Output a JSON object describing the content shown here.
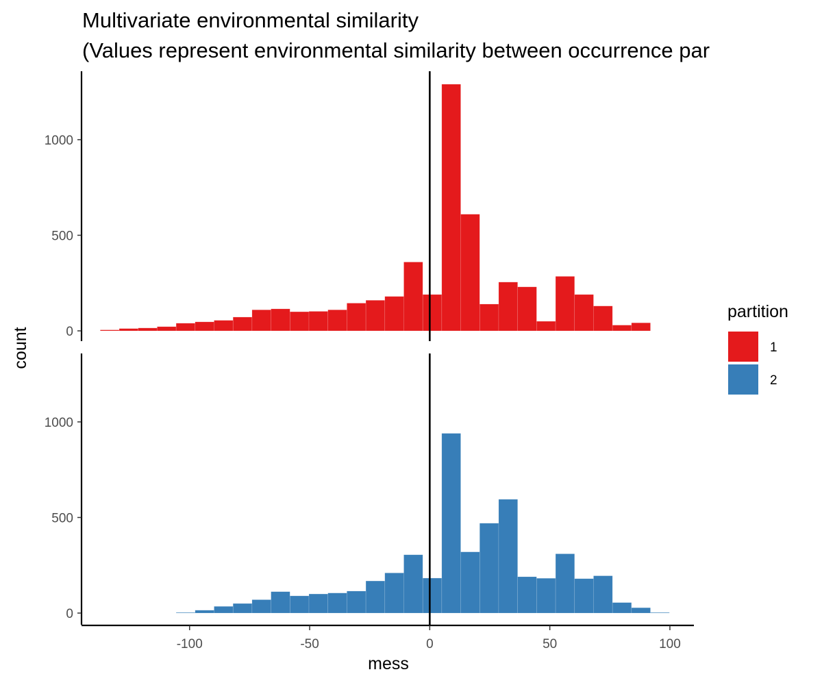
{
  "chart_data": {
    "type": "bar",
    "subtype": "faceted-histogram",
    "title": "Multivariate environmental similarity",
    "subtitle": "(Values represent environmental similarity between occurrence par",
    "xlabel": "mess",
    "ylabel": "count",
    "xlim": [
      -145,
      110
    ],
    "ylim": [
      0,
      1350
    ],
    "x_ticks": [
      -100,
      -50,
      0,
      50,
      100
    ],
    "y_ticks": [
      0,
      500,
      1000
    ],
    "bin_width": 7.9,
    "reference_line_x": 0,
    "grid": false,
    "legend": {
      "title": "partition",
      "position": "right",
      "entries": [
        {
          "label": "1",
          "color": "#E41A1C"
        },
        {
          "label": "2",
          "color": "#377EB8"
        }
      ]
    },
    "series": [
      {
        "name": "1",
        "color": "#E41A1C",
        "bins": [
          {
            "x0": -137.2,
            "x1": -129.3,
            "count": 5
          },
          {
            "x0": -129.3,
            "x1": -121.4,
            "count": 12
          },
          {
            "x0": -121.4,
            "x1": -113.5,
            "count": 15
          },
          {
            "x0": -113.5,
            "x1": -105.6,
            "count": 22
          },
          {
            "x0": -105.6,
            "x1": -97.7,
            "count": 40
          },
          {
            "x0": -97.7,
            "x1": -89.8,
            "count": 47
          },
          {
            "x0": -89.8,
            "x1": -81.9,
            "count": 55
          },
          {
            "x0": -81.9,
            "x1": -74.0,
            "count": 72
          },
          {
            "x0": -74.0,
            "x1": -66.1,
            "count": 110
          },
          {
            "x0": -66.1,
            "x1": -58.2,
            "count": 115
          },
          {
            "x0": -58.2,
            "x1": -50.3,
            "count": 100
          },
          {
            "x0": -50.3,
            "x1": -42.4,
            "count": 102
          },
          {
            "x0": -42.4,
            "x1": -34.5,
            "count": 110
          },
          {
            "x0": -34.5,
            "x1": -26.6,
            "count": 145
          },
          {
            "x0": -26.6,
            "x1": -18.7,
            "count": 160
          },
          {
            "x0": -18.7,
            "x1": -10.8,
            "count": 180
          },
          {
            "x0": -10.8,
            "x1": -2.9,
            "count": 360
          },
          {
            "x0": -2.9,
            "x1": 5.0,
            "count": 190
          },
          {
            "x0": 5.0,
            "x1": 12.9,
            "count": 1290
          },
          {
            "x0": 12.9,
            "x1": 20.8,
            "count": 610
          },
          {
            "x0": 20.8,
            "x1": 28.7,
            "count": 140
          },
          {
            "x0": 28.7,
            "x1": 36.6,
            "count": 255
          },
          {
            "x0": 36.6,
            "x1": 44.5,
            "count": 230
          },
          {
            "x0": 44.5,
            "x1": 52.4,
            "count": 50
          },
          {
            "x0": 52.4,
            "x1": 60.3,
            "count": 285
          },
          {
            "x0": 60.3,
            "x1": 68.2,
            "count": 190
          },
          {
            "x0": 68.2,
            "x1": 76.1,
            "count": 130
          },
          {
            "x0": 76.1,
            "x1": 84.0,
            "count": 30
          },
          {
            "x0": 84.0,
            "x1": 91.9,
            "count": 42
          }
        ]
      },
      {
        "name": "2",
        "color": "#377EB8",
        "bins": [
          {
            "x0": -105.6,
            "x1": -97.7,
            "count": 3
          },
          {
            "x0": -97.7,
            "x1": -89.8,
            "count": 15
          },
          {
            "x0": -89.8,
            "x1": -81.9,
            "count": 35
          },
          {
            "x0": -81.9,
            "x1": -74.0,
            "count": 50
          },
          {
            "x0": -74.0,
            "x1": -66.1,
            "count": 70
          },
          {
            "x0": -66.1,
            "x1": -58.2,
            "count": 112
          },
          {
            "x0": -58.2,
            "x1": -50.3,
            "count": 90
          },
          {
            "x0": -50.3,
            "x1": -42.4,
            "count": 100
          },
          {
            "x0": -42.4,
            "x1": -34.5,
            "count": 105
          },
          {
            "x0": -34.5,
            "x1": -26.6,
            "count": 115
          },
          {
            "x0": -26.6,
            "x1": -18.7,
            "count": 168
          },
          {
            "x0": -18.7,
            "x1": -10.8,
            "count": 210
          },
          {
            "x0": -10.8,
            "x1": -2.9,
            "count": 305
          },
          {
            "x0": -2.9,
            "x1": 5.0,
            "count": 183
          },
          {
            "x0": 5.0,
            "x1": 12.9,
            "count": 940
          },
          {
            "x0": 12.9,
            "x1": 20.8,
            "count": 320
          },
          {
            "x0": 20.8,
            "x1": 28.7,
            "count": 470
          },
          {
            "x0": 28.7,
            "x1": 36.6,
            "count": 595
          },
          {
            "x0": 36.6,
            "x1": 44.5,
            "count": 190
          },
          {
            "x0": 44.5,
            "x1": 52.4,
            "count": 182
          },
          {
            "x0": 52.4,
            "x1": 60.3,
            "count": 310
          },
          {
            "x0": 60.3,
            "x1": 68.2,
            "count": 180
          },
          {
            "x0": 68.2,
            "x1": 76.1,
            "count": 195
          },
          {
            "x0": 76.1,
            "x1": 84.0,
            "count": 55
          },
          {
            "x0": 84.0,
            "x1": 91.9,
            "count": 28
          },
          {
            "x0": 91.9,
            "x1": 99.8,
            "count": 3
          }
        ]
      }
    ]
  }
}
